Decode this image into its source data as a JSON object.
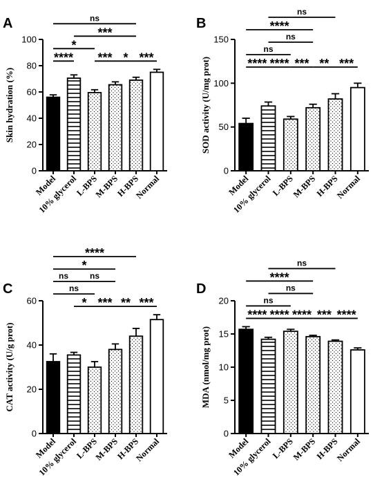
{
  "chart_data": [
    {
      "type": "bar",
      "panel": "A",
      "ylabel": "Skin hydration (%)",
      "ylim": [
        0,
        100
      ],
      "yticks": [
        0,
        20,
        40,
        60,
        80,
        100
      ],
      "categories": [
        "Model",
        "10% glycerol",
        "L-BPS",
        "M-BPS",
        "H-BPS",
        "Normal"
      ],
      "values": [
        56,
        70.5,
        59.5,
        65.5,
        69,
        75
      ],
      "errors": [
        1.8,
        2.5,
        2.2,
        2.2,
        2.2,
        2.2
      ],
      "patterns": [
        "solid",
        "hlines",
        "dots",
        "dots",
        "dots",
        "open"
      ],
      "significance": [
        {
          "from": 0,
          "to": 4,
          "label": "ns"
        },
        {
          "from": 1,
          "to": 4,
          "label": "***"
        },
        {
          "from": 0,
          "to": 2,
          "label": "*"
        },
        {
          "from": 0,
          "to": 1,
          "label": "****"
        },
        {
          "from": 2,
          "to": 3,
          "label": "***"
        },
        {
          "from": 3,
          "to": 4,
          "label": "*"
        },
        {
          "from": 4,
          "to": 5,
          "label": "***"
        }
      ]
    },
    {
      "type": "bar",
      "panel": "B",
      "ylabel": "SOD activity (U/mg prot)",
      "ylim": [
        0,
        150
      ],
      "yticks": [
        0,
        50,
        100,
        150
      ],
      "categories": [
        "Model",
        "10% glycerol",
        "L-BPS",
        "M-BPS",
        "H-BPS",
        "Normal"
      ],
      "values": [
        54,
        74,
        59,
        72,
        82,
        95
      ],
      "errors": [
        6,
        4.5,
        3,
        4,
        6,
        5
      ],
      "patterns": [
        "solid",
        "hlines",
        "dots",
        "dots",
        "dots",
        "open"
      ],
      "significance": [
        {
          "from": 1,
          "to": 4,
          "label": "ns"
        },
        {
          "from": 0,
          "to": 3,
          "label": "****"
        },
        {
          "from": 1,
          "to": 3,
          "label": "ns"
        },
        {
          "from": 0,
          "to": 2,
          "label": "ns"
        },
        {
          "from": 1,
          "to": 2,
          "label": "****"
        },
        {
          "from": 4,
          "to": 5,
          "label": "***"
        },
        {
          "from": 3,
          "to": 4,
          "label": "**"
        },
        {
          "from": 0,
          "to": 1,
          "label": "****"
        },
        {
          "from": 2,
          "to": 3,
          "label": "***"
        }
      ]
    },
    {
      "type": "bar",
      "panel": "C",
      "ylabel": "CAT activity (U/g prot)",
      "ylim": [
        0,
        60
      ],
      "yticks": [
        0,
        20,
        40,
        60
      ],
      "categories": [
        "Model",
        "10% glycerol",
        "L-BPS",
        "M-BPS",
        "H-BPS",
        "Normal"
      ],
      "values": [
        32.5,
        35.5,
        30,
        38,
        44,
        51.5
      ],
      "errors": [
        3.5,
        1.2,
        2.5,
        2.5,
        3.5,
        2.2
      ],
      "patterns": [
        "solid",
        "hlines",
        "dots",
        "dots",
        "dots",
        "open"
      ],
      "significance": [
        {
          "from": 0,
          "to": 4,
          "label": "****"
        },
        {
          "from": 0,
          "to": 3,
          "label": "*"
        },
        {
          "from": 1,
          "to": 3,
          "label": "ns"
        },
        {
          "from": 0,
          "to": 1,
          "label": "ns"
        },
        {
          "from": 4,
          "to": 5,
          "label": "***"
        },
        {
          "from": 0,
          "to": 2,
          "label": "ns"
        },
        {
          "from": 3,
          "to": 4,
          "label": "**"
        },
        {
          "from": 2,
          "to": 3,
          "label": "***"
        },
        {
          "from": 1,
          "to": 2,
          "label": "*"
        }
      ]
    },
    {
      "type": "bar",
      "panel": "D",
      "ylabel": "MDA (nmol/mg prot)",
      "ylim": [
        0,
        20
      ],
      "yticks": [
        0,
        5,
        10,
        15,
        20
      ],
      "categories": [
        "Model",
        "10% glycerol",
        "L-BPS",
        "M-BPS",
        "H-BPS",
        "Normal"
      ],
      "values": [
        15.7,
        14.2,
        15.4,
        14.6,
        13.9,
        12.6
      ],
      "errors": [
        0.4,
        0.3,
        0.3,
        0.2,
        0.2,
        0.3
      ],
      "patterns": [
        "solid",
        "hlines",
        "dots",
        "dots",
        "dots",
        "open"
      ],
      "significance": [
        {
          "from": 1,
          "to": 4,
          "label": "ns"
        },
        {
          "from": 0,
          "to": 3,
          "label": "****"
        },
        {
          "from": 1,
          "to": 3,
          "label": "ns"
        },
        {
          "from": 0,
          "to": 2,
          "label": "ns"
        },
        {
          "from": 1,
          "to": 2,
          "label": "****"
        },
        {
          "from": 3,
          "to": 4,
          "label": "***"
        },
        {
          "from": 0,
          "to": 1,
          "label": "****"
        },
        {
          "from": 2,
          "to": 3,
          "label": "****"
        },
        {
          "from": 4,
          "to": 5,
          "label": "****"
        }
      ]
    }
  ]
}
